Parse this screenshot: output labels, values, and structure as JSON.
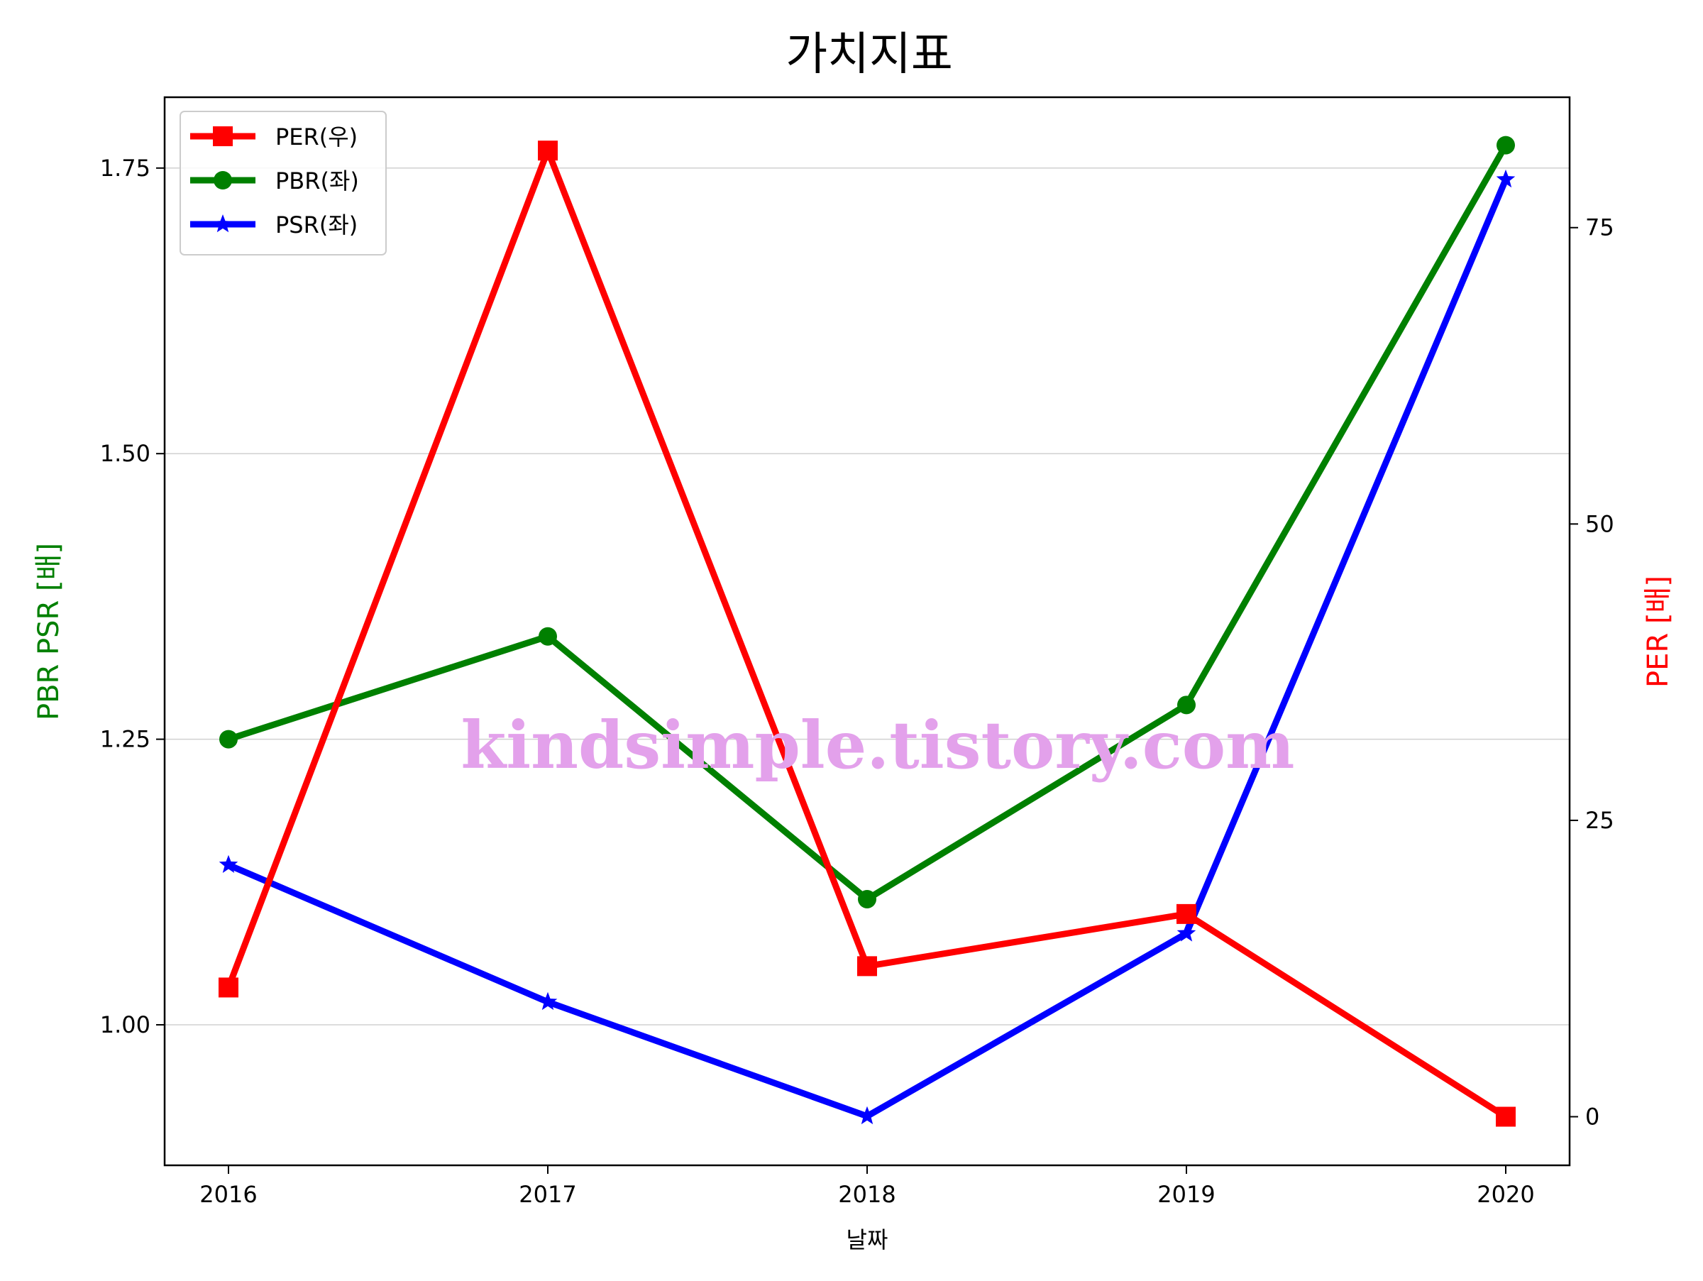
{
  "chart_data": {
    "type": "line",
    "title": "가치지표",
    "xlabel": "날짜",
    "ylabel_left": "PBR PSR [배]",
    "ylabel_right": "PER [배]",
    "ylabel_left_color": "#008000",
    "ylabel_right_color": "#ff0000",
    "categories": [
      "2016",
      "2017",
      "2018",
      "2019",
      "2020"
    ],
    "ylim_left": [
      0.877,
      1.812
    ],
    "ylim_right": [
      -4.1,
      86.0
    ],
    "yticks_left": [
      "1.00",
      "1.25",
      "1.50",
      "1.75"
    ],
    "yticks_left_values": [
      1.0,
      1.25,
      1.5,
      1.75
    ],
    "yticks_right": [
      "0",
      "25",
      "50",
      "75"
    ],
    "yticks_right_values": [
      0,
      25,
      50,
      75
    ],
    "grid": "horizontal",
    "legend_position": "upper-left",
    "series": [
      {
        "name": "PER(우)",
        "axis": "right",
        "color": "#ff0000",
        "marker": "square",
        "values": [
          10.9,
          81.5,
          12.7,
          17.1,
          0.0
        ]
      },
      {
        "name": "PBR(좌)",
        "axis": "left",
        "color": "#008000",
        "marker": "circle",
        "values": [
          1.25,
          1.34,
          1.11,
          1.28,
          1.77
        ]
      },
      {
        "name": "PSR(좌)",
        "axis": "left",
        "color": "#0000ff",
        "marker": "star",
        "values": [
          1.14,
          1.02,
          0.92,
          1.08,
          1.74
        ]
      }
    ]
  },
  "watermark": "kindsimple.tistory.com"
}
